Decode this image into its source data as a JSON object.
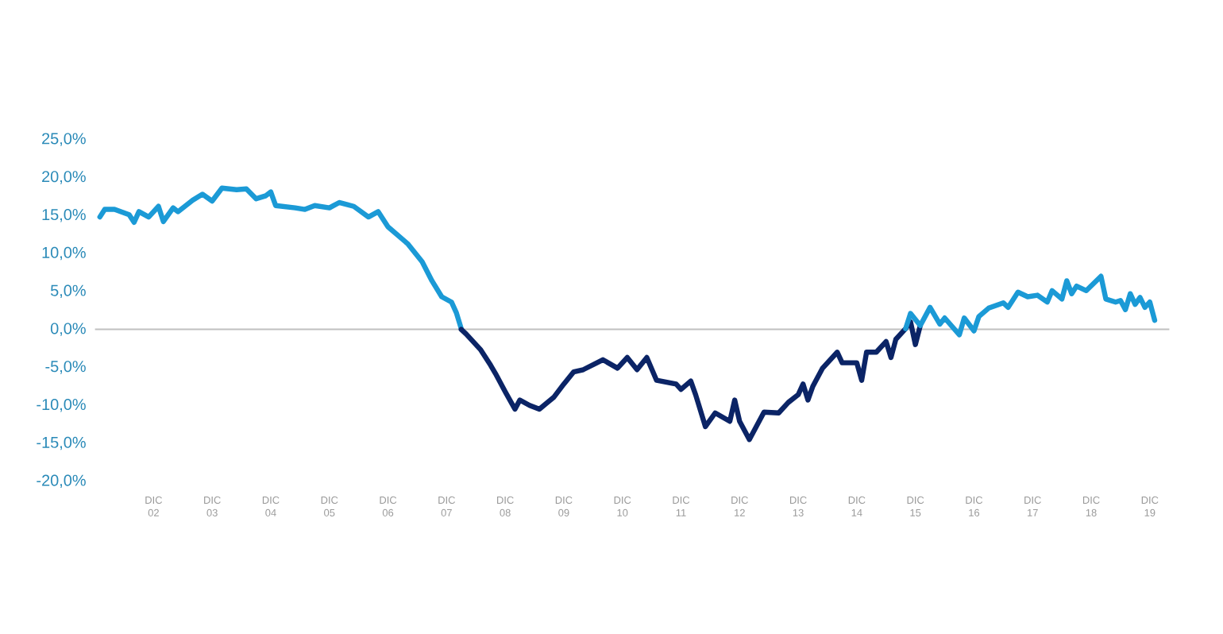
{
  "chart_data": {
    "type": "line",
    "xlim": [
      "2001-12",
      "2020-04"
    ],
    "ylim": [
      -20,
      25
    ],
    "xticks": [
      {
        "value": "2002-12",
        "label": "DIC 02"
      },
      {
        "value": "2003-12",
        "label": "DIC 03"
      },
      {
        "value": "2004-12",
        "label": "DIC 04"
      },
      {
        "value": "2005-12",
        "label": "DIC 05"
      },
      {
        "value": "2006-12",
        "label": "DIC 06"
      },
      {
        "value": "2007-12",
        "label": "DIC 07"
      },
      {
        "value": "2008-12",
        "label": "DIC 08"
      },
      {
        "value": "2009-12",
        "label": "DIC 09"
      },
      {
        "value": "2010-12",
        "label": "DIC 10"
      },
      {
        "value": "2011-12",
        "label": "DIC 11"
      },
      {
        "value": "2012-12",
        "label": "DIC 12"
      },
      {
        "value": "2013-12",
        "label": "DIC 13"
      },
      {
        "value": "2014-12",
        "label": "DIC 14"
      },
      {
        "value": "2015-12",
        "label": "DIC 15"
      },
      {
        "value": "2016-12",
        "label": "DIC 16"
      },
      {
        "value": "2017-12",
        "label": "DIC 17"
      },
      {
        "value": "2018-12",
        "label": "DIC 18"
      },
      {
        "value": "2019-12",
        "label": "DIC 19"
      }
    ],
    "yticks": [
      {
        "value": -20,
        "label": "-20,0%"
      },
      {
        "value": -15,
        "label": "-15,0%"
      },
      {
        "value": -10,
        "label": "-10,0%"
      },
      {
        "value": -5,
        "label": "-5,0%"
      },
      {
        "value": 0,
        "label": "0,0%"
      },
      {
        "value": 5,
        "label": "5,0%"
      },
      {
        "value": 10,
        "label": "10,0%"
      },
      {
        "value": 15,
        "label": "15,0%"
      },
      {
        "value": 20,
        "label": "20,0%"
      },
      {
        "value": 25,
        "label": "25,0%"
      }
    ],
    "grid": false,
    "marker": "none",
    "line_style": "solid",
    "ref_lines": [
      {
        "axis": "y",
        "value": 0,
        "color": "#c0c0c0"
      }
    ],
    "series": [
      {
        "color": "#1b9ad6",
        "x": [
          "2002-01",
          "2002-02",
          "2002-04",
          "2002-07",
          "2002-08",
          "2002-09",
          "2002-11",
          "2003-01",
          "2003-02",
          "2003-04",
          "2003-05",
          "2003-08",
          "2003-10",
          "2003-12",
          "2004-02",
          "2004-05",
          "2004-07",
          "2004-09",
          "2004-11",
          "2004-12",
          "2005-01",
          "2005-05",
          "2005-07",
          "2005-09",
          "2005-12",
          "2006-02",
          "2006-05",
          "2006-08",
          "2006-10",
          "2006-12",
          "2007-04",
          "2007-07",
          "2007-09",
          "2007-11",
          "2008-01",
          "2008-02",
          "2008-03"
        ],
        "values": [
          14.8,
          15.8,
          15.8,
          15.1,
          14.1,
          15.5,
          14.8,
          16.2,
          14.2,
          16.0,
          15.5,
          17.0,
          17.8,
          16.9,
          18.6,
          18.4,
          18.5,
          17.2,
          17.6,
          18.1,
          16.3,
          16.0,
          15.8,
          16.3,
          16.0,
          16.7,
          16.2,
          14.8,
          15.5,
          13.5,
          11.3,
          8.9,
          6.4,
          4.3,
          3.6,
          2.2,
          0.1
        ]
      },
      {
        "color": "#0b2466",
        "x": [
          "2008-03",
          "2008-04",
          "2008-07",
          "2008-09",
          "2008-10",
          "2008-12",
          "2009-02",
          "2009-03",
          "2009-05",
          "2009-07",
          "2009-10",
          "2009-12",
          "2010-02",
          "2010-04",
          "2010-08",
          "2010-11",
          "2011-01",
          "2011-03",
          "2011-05",
          "2011-07",
          "2011-11",
          "2011-12",
          "2012-02",
          "2012-03",
          "2012-05",
          "2012-07",
          "2012-10",
          "2012-11",
          "2012-12",
          "2013-02",
          "2013-05",
          "2013-08",
          "2013-10",
          "2013-12",
          "2014-01",
          "2014-02",
          "2014-03",
          "2014-05",
          "2014-08",
          "2014-09",
          "2014-12",
          "2015-01",
          "2015-02",
          "2015-04",
          "2015-06",
          "2015-07",
          "2015-08",
          "2015-10",
          "2015-11",
          "2015-12",
          "2016-01"
        ],
        "values": [
          0,
          -0.6,
          -2.7,
          -4.7,
          -5.8,
          -8.2,
          -10.5,
          -9.3,
          -10.0,
          -10.5,
          -8.9,
          -7.2,
          -5.6,
          -5.3,
          -4.0,
          -5.1,
          -3.7,
          -5.3,
          -3.7,
          -6.7,
          -7.2,
          -7.9,
          -6.8,
          -8.6,
          -12.8,
          -11.0,
          -12.1,
          -9.3,
          -12.1,
          -14.5,
          -10.9,
          -11.0,
          -9.6,
          -8.6,
          -7.2,
          -9.3,
          -7.5,
          -5.1,
          -3.0,
          -4.4,
          -4.4,
          -6.7,
          -3.0,
          -3.0,
          -1.6,
          -3.7,
          -1.3,
          0.1,
          1.0,
          -2.0,
          0.5
        ]
      },
      {
        "color": "#1b9ad6",
        "x": [
          "2015-10",
          "2015-11",
          "2016-01",
          "2016-03",
          "2016-05",
          "2016-06",
          "2016-09",
          "2016-10",
          "2016-12",
          "2017-01",
          "2017-03",
          "2017-06",
          "2017-07",
          "2017-09",
          "2017-11",
          "2018-01",
          "2018-03",
          "2018-04",
          "2018-06",
          "2018-07",
          "2018-08",
          "2018-09",
          "2018-11",
          "2019-02",
          "2019-03",
          "2019-05",
          "2019-06",
          "2019-07",
          "2019-08",
          "2019-09",
          "2019-10",
          "2019-11",
          "2019-12",
          "2020-01"
        ],
        "values": [
          0.1,
          2.1,
          0.5,
          2.9,
          0.7,
          1.5,
          -0.7,
          1.5,
          -0.2,
          1.7,
          2.8,
          3.5,
          2.9,
          4.9,
          4.3,
          4.5,
          3.6,
          5.1,
          4.0,
          6.4,
          4.7,
          5.7,
          5.1,
          7.0,
          4.0,
          3.6,
          3.8,
          2.6,
          4.7,
          3.3,
          4.2,
          2.9,
          3.6,
          1.2
        ]
      }
    ]
  }
}
